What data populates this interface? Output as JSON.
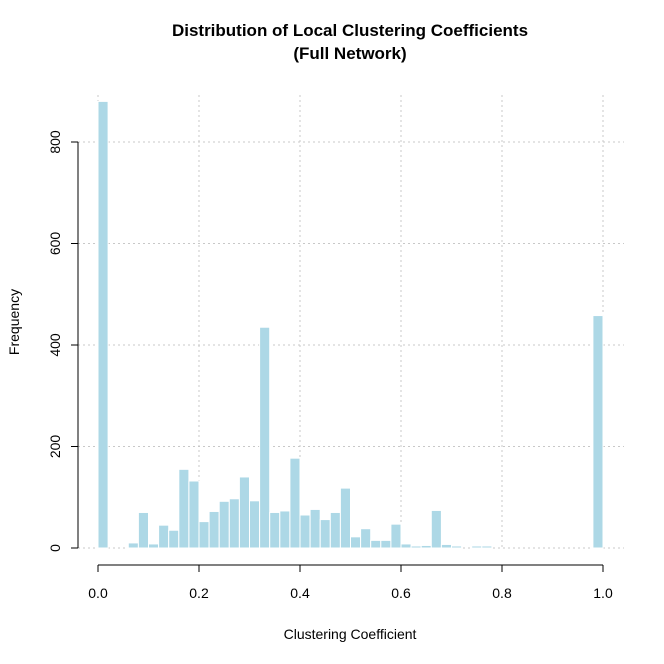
{
  "chart_data": {
    "type": "bar",
    "title": "Distribution of Local Clustering Coefficients",
    "subtitle": "(Full Network)",
    "xlabel": "Clustering Coefficient",
    "ylabel": "Frequency",
    "xlim": [
      0,
      1
    ],
    "ylim": [
      0,
      900
    ],
    "x_ticks": [
      "0.0",
      "0.2",
      "0.4",
      "0.6",
      "0.8",
      "1.0"
    ],
    "y_ticks": [
      "0",
      "200",
      "400",
      "600",
      "800"
    ],
    "grid": true,
    "bar_color": "#add8e6",
    "bin_width": 0.02,
    "bin_start": 0,
    "values": [
      880,
      0,
      0,
      10,
      70,
      8,
      45,
      35,
      155,
      132,
      52,
      72,
      92,
      97,
      140,
      93,
      435,
      70,
      73,
      177,
      65,
      76,
      56,
      70,
      118,
      22,
      38,
      15,
      15,
      47,
      8,
      4,
      5,
      74,
      7,
      4,
      0,
      4,
      4,
      0,
      0,
      0,
      0,
      0,
      0,
      0,
      0,
      0,
      0,
      458
    ]
  }
}
